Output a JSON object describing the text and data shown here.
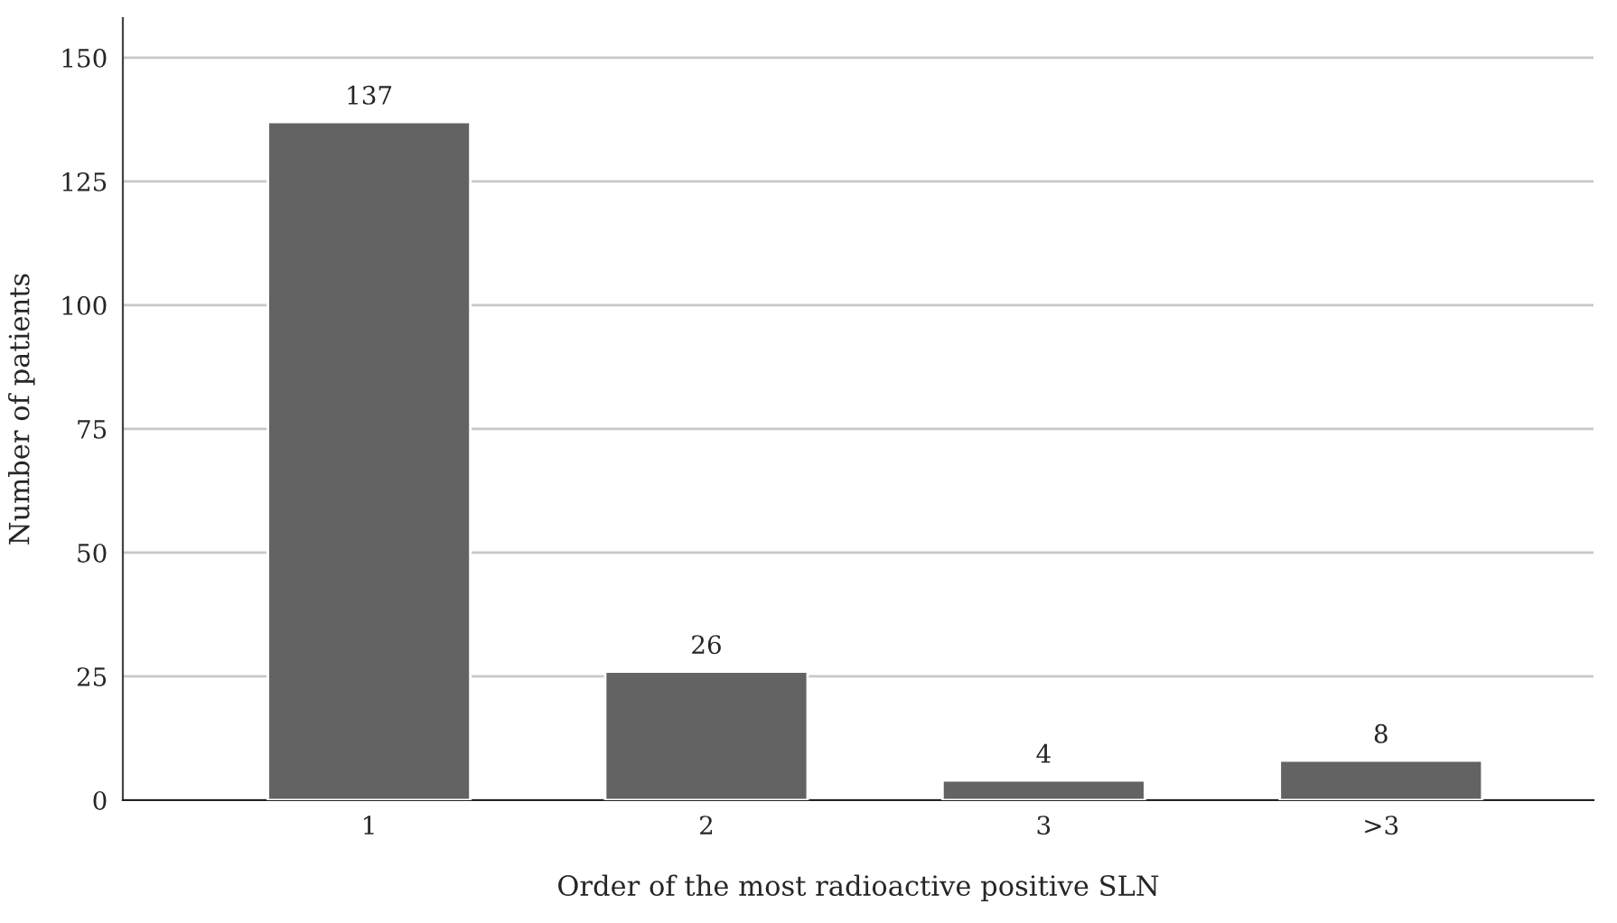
{
  "chart_data": {
    "type": "bar",
    "xlabel": "Order of the most radioactive positive SLN",
    "ylabel": "Number of patients",
    "categories": [
      "1",
      "2",
      "3",
      ">3"
    ],
    "values": [
      137,
      26,
      4,
      8
    ],
    "color": "#636363",
    "ylim": [
      0,
      158
    ],
    "yticks": [
      0,
      25,
      50,
      75,
      100,
      125,
      150
    ],
    "grid": "y",
    "data_labels": true
  }
}
